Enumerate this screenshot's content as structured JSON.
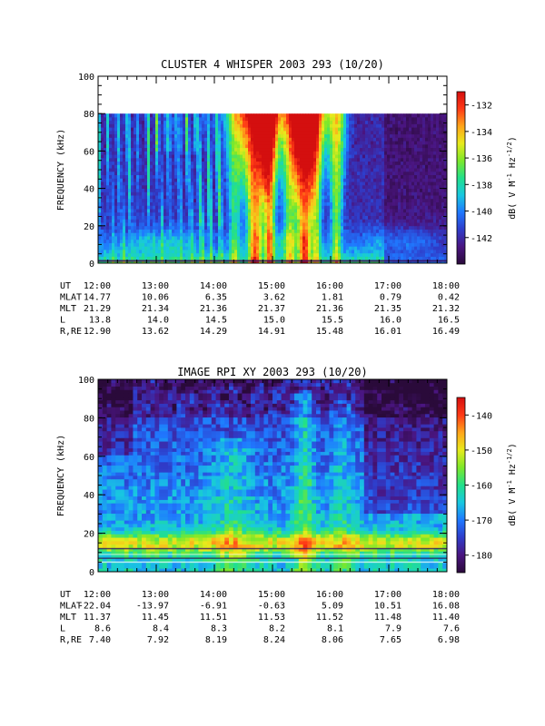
{
  "colors": {
    "scale": [
      "#2a0a3a",
      "#4a1580",
      "#2f3cc9",
      "#1f78ff",
      "#18c8e0",
      "#22e08a",
      "#7ee82a",
      "#e8ea1c",
      "#ffa51a",
      "#ff3a16",
      "#d40f0f"
    ],
    "background": "#ffffff",
    "axis": "#000000"
  },
  "chart_data": [
    {
      "type": "heatmap",
      "title": "CLUSTER 4 WHISPER 2003 293 (10/20)",
      "ylabel": "FREQUENCY (kHz)",
      "ylim": [
        0,
        100
      ],
      "yticks": [
        "0",
        "20",
        "40",
        "60",
        "80",
        "100"
      ],
      "xlim": [
        "12:00",
        "18:00"
      ],
      "xticks": [
        "12:00",
        "13:00",
        "14:00",
        "15:00",
        "16:00",
        "17:00",
        "18:00"
      ],
      "data_fmax_khz": 80,
      "colorbar": {
        "label": "dB( V M⁻¹ Hz⁻¹ᐟ²)",
        "label_parts": {
          "base": "dB( V M",
          "exp1": "-1",
          "mid": " Hz",
          "exp2": "-1/2",
          "end": ")"
        },
        "range": [
          -144,
          -131
        ],
        "ticks": [
          "-132",
          "-134",
          "-136",
          "-138",
          "-140",
          "-142"
        ]
      },
      "ephemeris": [
        {
          "label": "UT",
          "values": [
            "12:00",
            "13:00",
            "14:00",
            "15:00",
            "16:00",
            "17:00",
            "18:00"
          ]
        },
        {
          "label": "MLAT",
          "values": [
            "14.77",
            "10.06",
            "6.35",
            "3.62",
            "1.81",
            "0.79",
            "0.42"
          ]
        },
        {
          "label": "MLT",
          "values": [
            "21.29",
            "21.34",
            "21.36",
            "21.37",
            "21.36",
            "21.35",
            "21.32"
          ]
        },
        {
          "label": "L",
          "values": [
            "13.8",
            "14.0",
            "14.5",
            "15.0",
            "15.5",
            "16.0",
            "16.5"
          ]
        },
        {
          "label": "R,RE",
          "values": [
            "12.90",
            "13.62",
            "14.29",
            "14.91",
            "15.48",
            "16.01",
            "16.49"
          ]
        }
      ]
    },
    {
      "type": "heatmap",
      "title": "IMAGE RPI XY 2003 293 (10/20)",
      "ylabel": "FREQUENCY (kHz)",
      "ylim": [
        0,
        100
      ],
      "yticks": [
        "0",
        "20",
        "40",
        "60",
        "80",
        "100"
      ],
      "xlim": [
        "12:00",
        "18:00"
      ],
      "xticks": [
        "12:00",
        "13:00",
        "14:00",
        "15:00",
        "16:00",
        "17:00",
        "18:00"
      ],
      "colorbar": {
        "label_parts": {
          "base": "dB( V M",
          "exp1": "-1",
          "mid": " Hz",
          "exp2": "-1/2",
          "end": ")"
        },
        "range": [
          -185,
          -135
        ],
        "ticks": [
          "-140",
          "-150",
          "-160",
          "-170",
          "-180"
        ]
      },
      "ephemeris": [
        {
          "label": "UT",
          "values": [
            "12:00",
            "13:00",
            "14:00",
            "15:00",
            "16:00",
            "17:00",
            "18:00"
          ]
        },
        {
          "label": "MLAT",
          "values": [
            "-22.04",
            "-13.97",
            "-6.91",
            "-0.63",
            "5.09",
            "10.51",
            "16.08"
          ]
        },
        {
          "label": "MLT",
          "values": [
            "11.37",
            "11.45",
            "11.51",
            "11.53",
            "11.52",
            "11.48",
            "11.40"
          ]
        },
        {
          "label": "L",
          "values": [
            "8.6",
            "8.4",
            "8.3",
            "8.2",
            "8.1",
            "7.9",
            "7.6"
          ]
        },
        {
          "label": "R,RE",
          "values": [
            "7.40",
            "7.92",
            "8.19",
            "8.24",
            "8.06",
            "7.65",
            "6.98"
          ]
        }
      ]
    }
  ]
}
